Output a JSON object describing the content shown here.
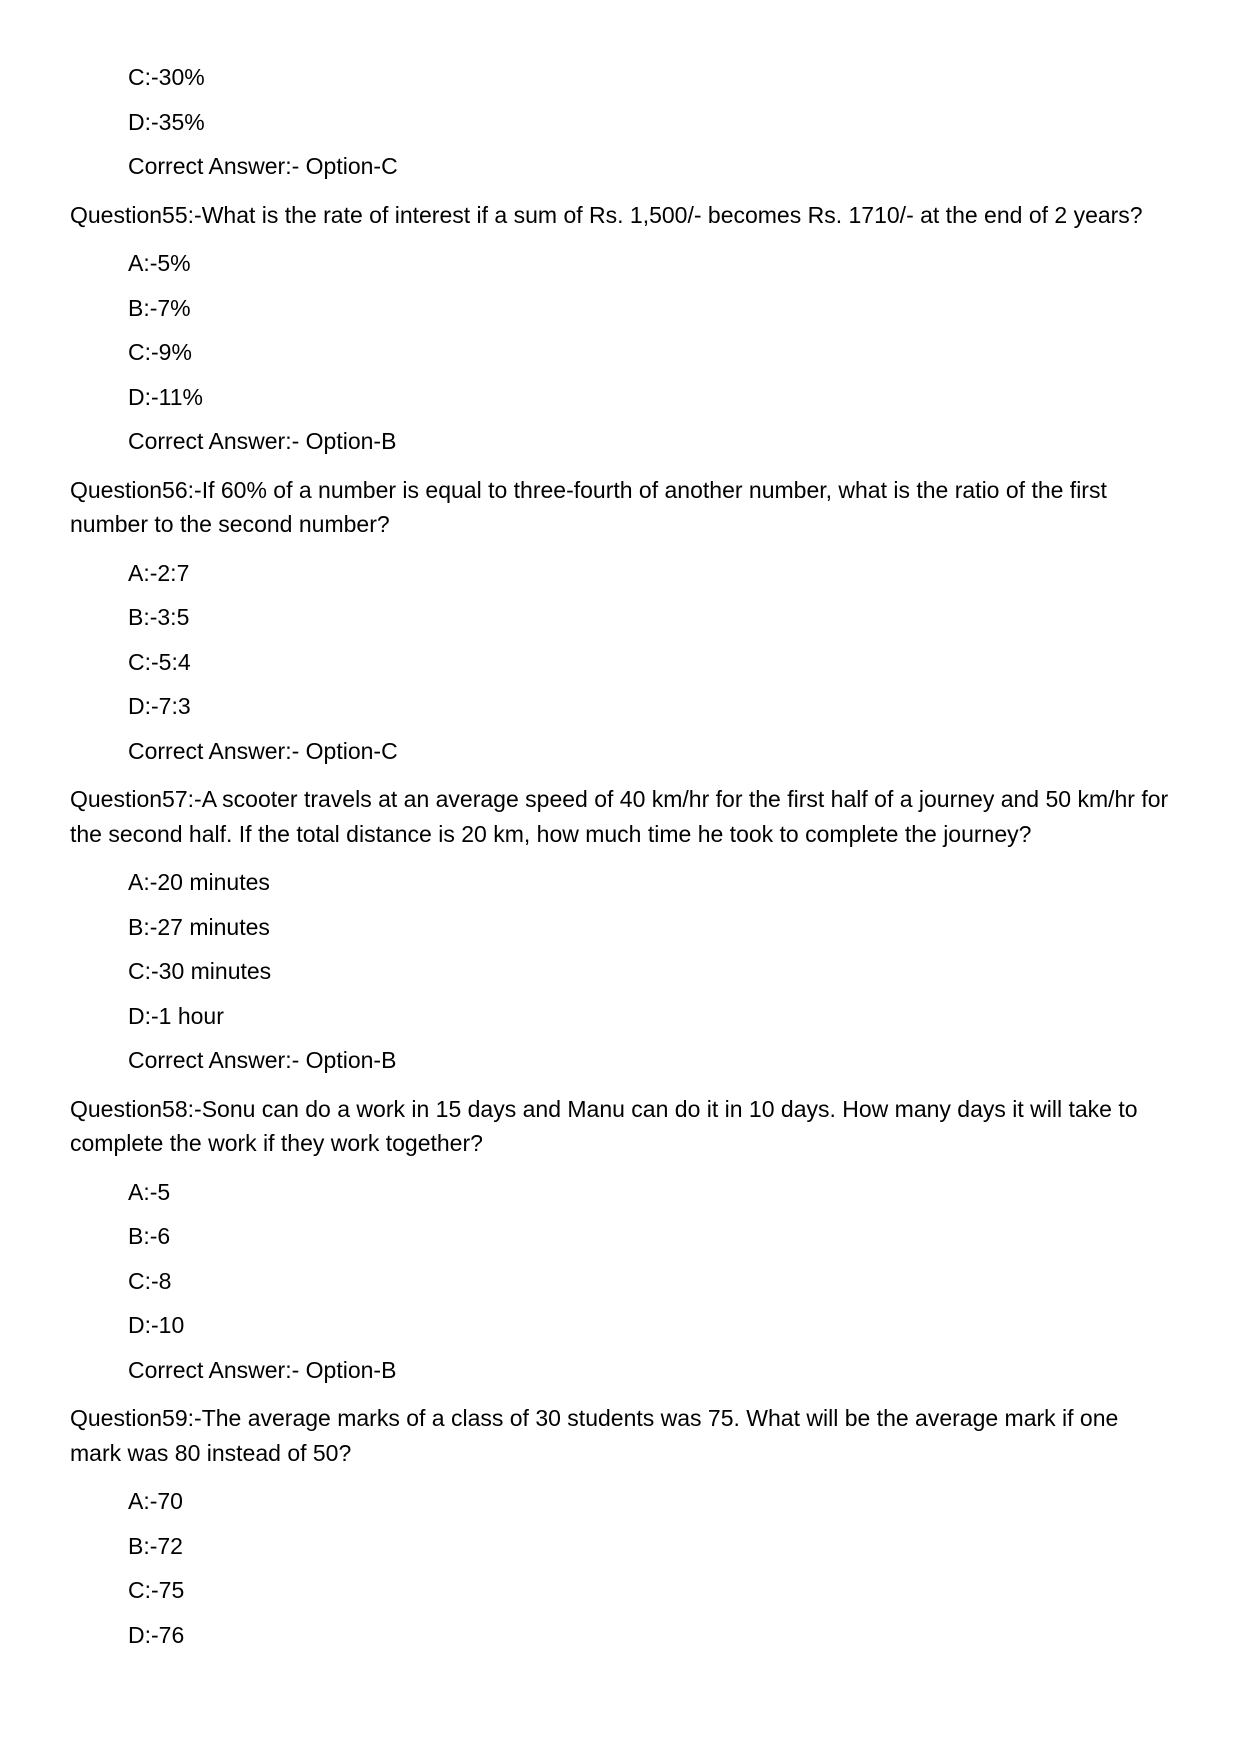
{
  "orphanOptions": [
    {
      "label": "C:-30%"
    },
    {
      "label": "D:-35%"
    }
  ],
  "orphanAnswer": "Correct Answer:- Option-C",
  "questions": [
    {
      "prompt": "Question55:-What is the rate of interest if a sum of Rs. 1,500/- becomes Rs. 1710/- at the end of 2 years?",
      "options": [
        {
          "label": "A:-5%"
        },
        {
          "label": "B:-7%"
        },
        {
          "label": "C:-9%"
        },
        {
          "label": "D:-11%"
        }
      ],
      "answer": "Correct Answer:- Option-B"
    },
    {
      "prompt": "Question56:-If 60% of a number is equal to three-fourth of another number, what is the ratio of the first number to the second number?",
      "options": [
        {
          "label": "A:-2:7"
        },
        {
          "label": "B:-3:5"
        },
        {
          "label": "C:-5:4"
        },
        {
          "label": "D:-7:3"
        }
      ],
      "answer": "Correct Answer:- Option-C"
    },
    {
      "prompt": "Question57:-A scooter travels at an average speed of 40 km/hr for the first half of a journey and 50 km/hr for the second half. If the total distance is 20 km, how much time he took to complete the journey?",
      "options": [
        {
          "label": "A:-20 minutes"
        },
        {
          "label": "B:-27 minutes"
        },
        {
          "label": "C:-30 minutes"
        },
        {
          "label": "D:-1 hour"
        }
      ],
      "answer": "Correct Answer:- Option-B"
    },
    {
      "prompt": "Question58:-Sonu can do a work in 15 days and Manu can do it in 10 days. How many days it will take to complete the work if they work together?",
      "options": [
        {
          "label": "A:-5"
        },
        {
          "label": "B:-6"
        },
        {
          "label": "C:-8"
        },
        {
          "label": "D:-10"
        }
      ],
      "answer": "Correct Answer:- Option-B"
    },
    {
      "prompt": "Question59:-The average marks of a class of 30 students was 75. What will be the average mark if one mark was 80 instead of 50?",
      "options": [
        {
          "label": "A:-70"
        },
        {
          "label": "B:-72"
        },
        {
          "label": "C:-75"
        },
        {
          "label": "D:-76"
        }
      ],
      "answer": ""
    }
  ]
}
